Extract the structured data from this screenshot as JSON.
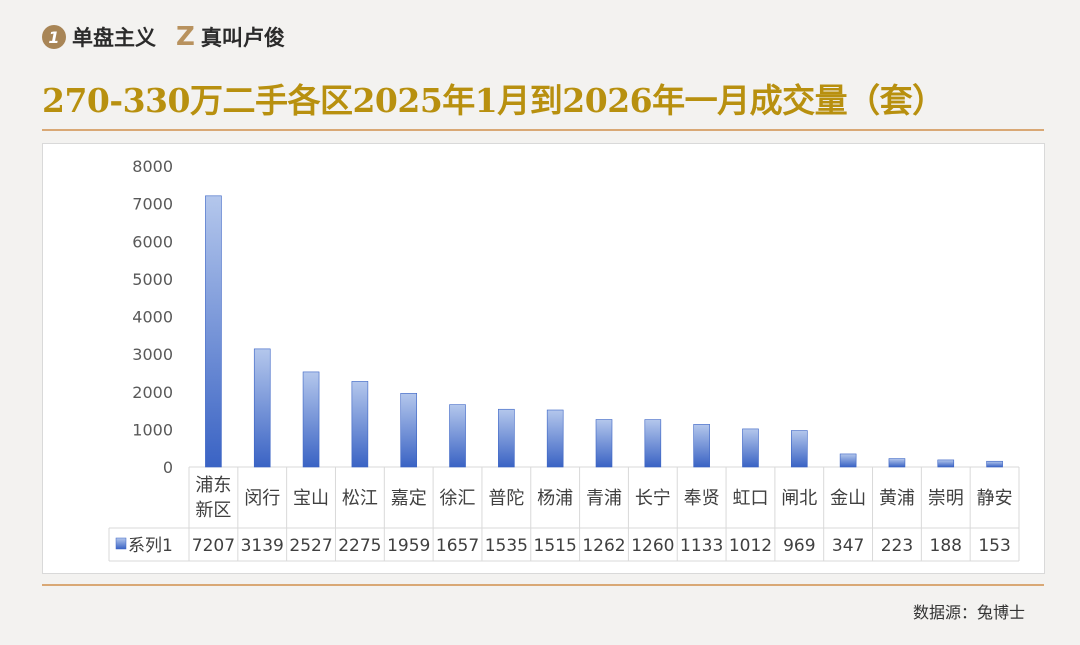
{
  "brand": {
    "logo1": "1",
    "name1": "单盘主义",
    "logo2": "Z",
    "name2": "真叫卢俊"
  },
  "title": "270-330万二手各区2025年1月到2026年一月成交量（套）",
  "source": "数据源：兔博士",
  "chart_data": {
    "type": "bar",
    "categories": [
      "浦东新区",
      "闵行",
      "宝山",
      "松江",
      "嘉定",
      "徐汇",
      "普陀",
      "杨浦",
      "青浦",
      "长宁",
      "奉贤",
      "虹口",
      "闸北",
      "金山",
      "黄浦",
      "崇明",
      "静安"
    ],
    "series": [
      {
        "name": "系列1",
        "values": [
          7207,
          3139,
          2527,
          2275,
          1959,
          1657,
          1535,
          1515,
          1262,
          1260,
          1133,
          1012,
          969,
          347,
          223,
          188,
          153
        ]
      }
    ],
    "yticks": [
      0,
      1000,
      2000,
      3000,
      4000,
      5000,
      6000,
      7000,
      8000
    ],
    "ylim": [
      0,
      8000
    ],
    "data_table": true,
    "bar_color": "#4472c4"
  }
}
